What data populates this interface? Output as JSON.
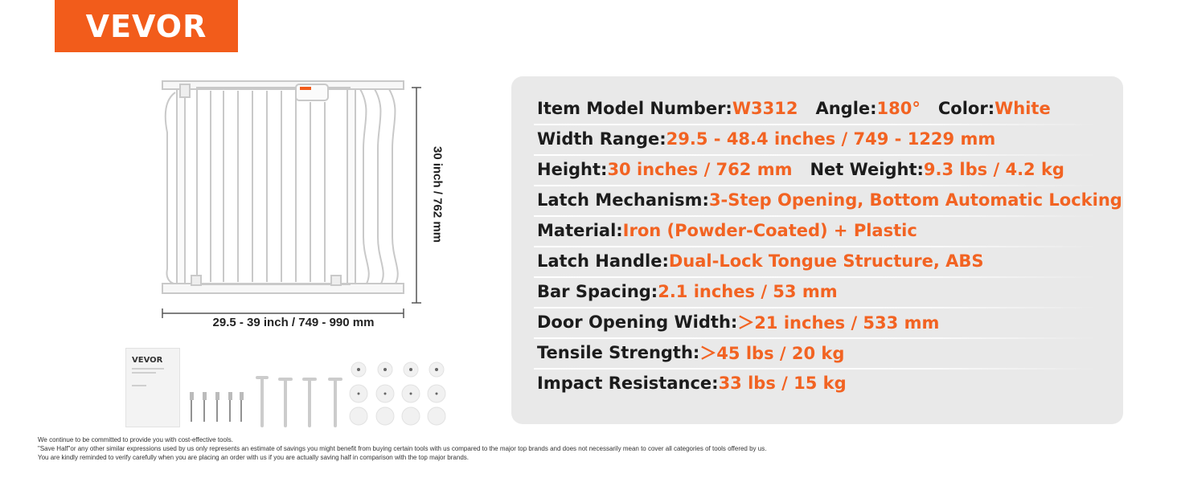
{
  "brand": {
    "name": "VEVOR",
    "color": "#f25c1b"
  },
  "dimensions": {
    "width_label": "29.5 - 39 inch / 749 - 990 mm",
    "height_label": "30 inch / 762 mm"
  },
  "accessories": {
    "manual_brand": "VEVOR"
  },
  "specs": {
    "label_color": "#1c1c1c",
    "value_color": "#f26322",
    "rows": [
      {
        "pairs": [
          {
            "label": "Item Model Number: ",
            "value": "W3312"
          },
          {
            "label": "Angle: ",
            "value": "180°"
          },
          {
            "label": "Color: ",
            "value": "White"
          }
        ]
      },
      {
        "pairs": [
          {
            "label": "Width Range: ",
            "value": "29.5 - 48.4 inches / 749 - 1229 mm"
          }
        ]
      },
      {
        "pairs": [
          {
            "label": "Height: ",
            "value": "30 inches / 762 mm"
          },
          {
            "label": "Net Weight: ",
            "value": "9.3 lbs / 4.2 kg"
          }
        ]
      },
      {
        "pairs": [
          {
            "label": "Latch Mechanism: ",
            "value": "3-Step Opening, Bottom Automatic Locking"
          }
        ]
      },
      {
        "pairs": [
          {
            "label": "Material: ",
            "value": "Iron (Powder-Coated) + Plastic"
          }
        ]
      },
      {
        "pairs": [
          {
            "label": "Latch Handle: ",
            "value": "Dual-Lock Tongue Structure, ABS"
          }
        ]
      },
      {
        "pairs": [
          {
            "label": "Bar Spacing: ",
            "value": "2.1 inches / 53 mm"
          }
        ]
      },
      {
        "pairs": [
          {
            "label": "Door Opening Width: ",
            "value": "＞21 inches / 533 mm"
          }
        ]
      },
      {
        "pairs": [
          {
            "label": "Tensile Strength: ",
            "value": "＞45 lbs / 20 kg"
          }
        ]
      },
      {
        "pairs": [
          {
            "label": "Impact Resistance: ",
            "value": "33 lbs / 15 kg"
          }
        ]
      }
    ]
  },
  "disclaimer": {
    "line1": "We continue to be committed to provide you with cost-effective tools.",
    "line2": "\"Save Half\"or any other similar expressions used by us only represents an estimate of savings you might benefit from buying certain tools with us compared to the major top brands and does not necessarily mean to cover all categories of tools offered by us.",
    "line3": "You are kindly reminded to verify carefully when you are placing an order with us if you are actually saving half in comparison with the top major brands."
  }
}
